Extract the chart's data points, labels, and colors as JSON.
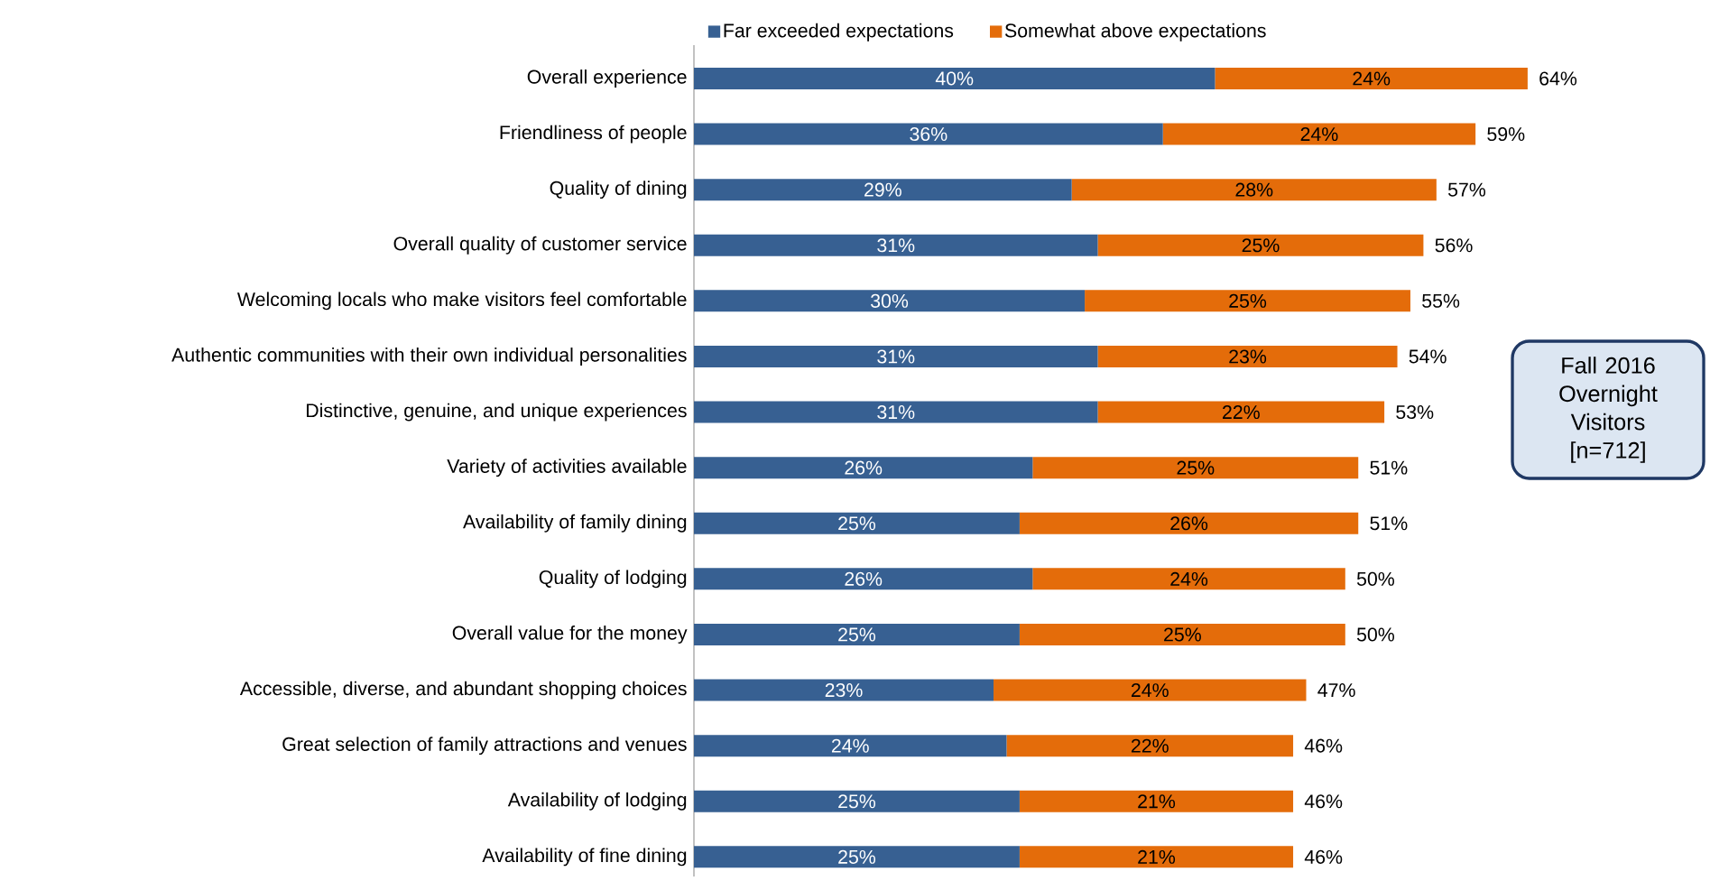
{
  "chart_data": {
    "type": "bar",
    "orientation": "horizontal",
    "stacked": true,
    "legend": "top",
    "categories": [
      "Overall experience",
      "Friendliness of people",
      "Quality of dining",
      "Overall quality of customer service",
      "Welcoming locals who make visitors feel comfortable",
      "Authentic communities with their own individual personalities",
      "Distinctive, genuine, and unique experiences",
      "Variety of activities available",
      "Availability of family dining",
      "Quality of lodging",
      "Overall value for the money",
      "Accessible, diverse, and abundant shopping choices",
      "Great selection of family attractions and venues",
      "Availability of lodging",
      "Availability of fine dining"
    ],
    "series": [
      {
        "name": "Far exceeded expectations",
        "color": "#376092",
        "values": [
          40,
          36,
          29,
          31,
          30,
          31,
          31,
          26,
          25,
          26,
          25,
          23,
          24,
          25,
          25
        ],
        "value_labels": [
          "40%",
          "36%",
          "29%",
          "31%",
          "30%",
          "31%",
          "31%",
          "26%",
          "25%",
          "26%",
          "25%",
          "23%",
          "24%",
          "25%",
          "25%"
        ]
      },
      {
        "name": "Somewhat above expectations",
        "color": "#e46c0a",
        "values": [
          24,
          24,
          28,
          25,
          25,
          23,
          22,
          25,
          26,
          24,
          25,
          24,
          22,
          21,
          21
        ],
        "value_labels": [
          "24%",
          "24%",
          "28%",
          "25%",
          "25%",
          "23%",
          "22%",
          "25%",
          "26%",
          "24%",
          "25%",
          "24%",
          "22%",
          "21%",
          "21%"
        ]
      }
    ],
    "totals": [
      "64%",
      "59%",
      "57%",
      "56%",
      "55%",
      "54%",
      "53%",
      "51%",
      "51%",
      "50%",
      "50%",
      "47%",
      "46%",
      "46%",
      "46%"
    ],
    "annotations": [
      "Fall 2016 Overnight Visitors [n=712]"
    ]
  }
}
